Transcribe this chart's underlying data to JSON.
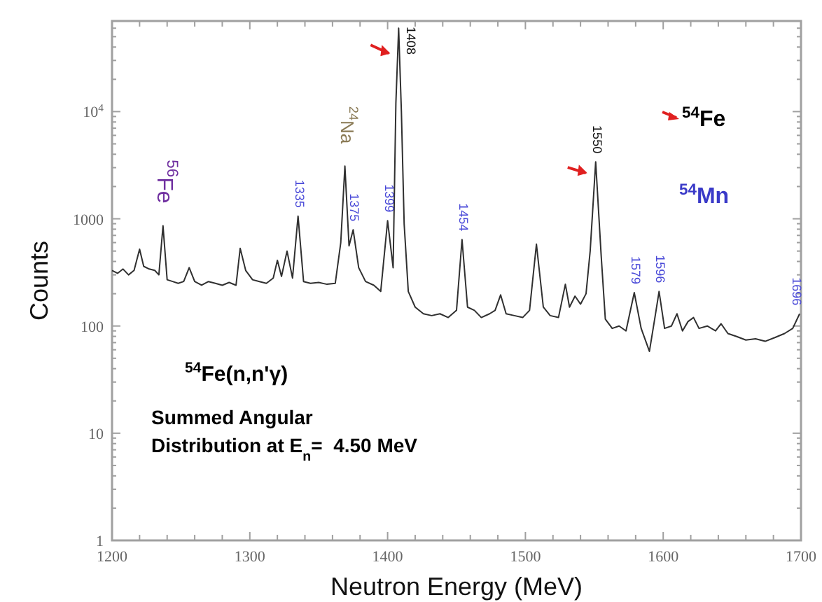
{
  "chart_data": {
    "type": "line",
    "xlabel": "Neutron Energy (MeV)",
    "ylabel": "Counts",
    "log": "y",
    "grid": false,
    "marker": "none",
    "line_style": "solid",
    "xlim": [
      1200,
      1700
    ],
    "ylim": [
      1,
      70000
    ],
    "xticks": [
      1200,
      {
        "value": 1220,
        "label": null
      },
      {
        "value": 1240,
        "label": null
      },
      {
        "value": 1260,
        "label": null
      },
      {
        "value": 1280,
        "label": null
      },
      1300,
      {
        "value": 1320,
        "label": null
      },
      {
        "value": 1340,
        "label": null
      },
      {
        "value": 1360,
        "label": null
      },
      {
        "value": 1380,
        "label": null
      },
      1400,
      {
        "value": 1420,
        "label": null
      },
      {
        "value": 1440,
        "label": null
      },
      {
        "value": 1460,
        "label": null
      },
      {
        "value": 1480,
        "label": null
      },
      1500,
      {
        "value": 1520,
        "label": null
      },
      {
        "value": 1540,
        "label": null
      },
      {
        "value": 1560,
        "label": null
      },
      {
        "value": 1580,
        "label": null
      },
      1600,
      {
        "value": 1620,
        "label": null
      },
      {
        "value": 1640,
        "label": null
      },
      {
        "value": 1660,
        "label": null
      },
      {
        "value": 1680,
        "label": null
      },
      1700
    ],
    "yticks": [
      1,
      {
        "value": 2,
        "label": null
      },
      {
        "value": 3,
        "label": null
      },
      {
        "value": 4,
        "label": null
      },
      {
        "value": 5,
        "label": null
      },
      {
        "value": 6,
        "label": null
      },
      {
        "value": 7,
        "label": null
      },
      {
        "value": 8,
        "label": null
      },
      {
        "value": 9,
        "label": null
      },
      10,
      {
        "value": 20,
        "label": null
      },
      {
        "value": 30,
        "label": null
      },
      {
        "value": 40,
        "label": null
      },
      {
        "value": 50,
        "label": null
      },
      {
        "value": 60,
        "label": null
      },
      {
        "value": 70,
        "label": null
      },
      {
        "value": 80,
        "label": null
      },
      {
        "value": 90,
        "label": null
      },
      100,
      {
        "value": 200,
        "label": null
      },
      {
        "value": 300,
        "label": null
      },
      {
        "value": 400,
        "label": null
      },
      {
        "value": 500,
        "label": null
      },
      {
        "value": 600,
        "label": null
      },
      {
        "value": 700,
        "label": null
      },
      {
        "value": 800,
        "label": null
      },
      {
        "value": 900,
        "label": null
      },
      1000,
      {
        "value": 2000,
        "label": null
      },
      {
        "value": 3000,
        "label": null
      },
      {
        "value": 4000,
        "label": null
      },
      {
        "value": 5000,
        "label": null
      },
      {
        "value": 6000,
        "label": null
      },
      {
        "value": 7000,
        "label": null
      },
      {
        "value": 8000,
        "label": null
      },
      {
        "value": 9000,
        "label": null
      },
      {
        "value": 10000,
        "label": "10$^{4}$"
      },
      {
        "value": 20000,
        "label": null
      },
      {
        "value": 30000,
        "label": null
      },
      {
        "value": 40000,
        "label": null
      },
      {
        "value": 50000,
        "label": null
      },
      {
        "value": 60000,
        "label": null
      }
    ],
    "series": [
      {
        "color": "#303030",
        "x": [
          1200,
          1204,
          1208,
          1212,
          1216,
          1220,
          1223,
          1227,
          1231,
          1234,
          1237,
          1240,
          1244,
          1248,
          1252,
          1256,
          1260,
          1265,
          1270,
          1275,
          1280,
          1285,
          1290,
          1293,
          1297,
          1302,
          1307,
          1312,
          1317,
          1320,
          1323,
          1327,
          1331,
          1335,
          1339,
          1344,
          1350,
          1356,
          1362,
          1366,
          1369,
          1372,
          1375,
          1379,
          1384,
          1390,
          1395,
          1400,
          1404,
          1406,
          1408,
          1410,
          1412,
          1415,
          1420,
          1426,
          1432,
          1438,
          1444,
          1450,
          1454,
          1458,
          1463,
          1468,
          1474,
          1478,
          1482,
          1486,
          1492,
          1498,
          1503,
          1508,
          1513,
          1518,
          1524,
          1529,
          1532,
          1536,
          1540,
          1544,
          1547,
          1551,
          1555,
          1558,
          1563,
          1568,
          1573,
          1579,
          1584,
          1590,
          1594,
          1597,
          1601,
          1606,
          1610,
          1614,
          1618,
          1622,
          1626,
          1632,
          1638,
          1642,
          1647,
          1653,
          1660,
          1667,
          1674,
          1681,
          1688,
          1694,
          1699
        ],
        "values": [
          330,
          310,
          340,
          300,
          330,
          520,
          360,
          340,
          330,
          300,
          860,
          270,
          260,
          250,
          260,
          350,
          260,
          240,
          260,
          250,
          240,
          255,
          240,
          530,
          330,
          270,
          260,
          250,
          280,
          410,
          290,
          500,
          280,
          1060,
          260,
          250,
          255,
          245,
          250,
          600,
          3100,
          560,
          790,
          350,
          260,
          240,
          210,
          960,
          350,
          12000,
          60000,
          10000,
          900,
          210,
          150,
          130,
          125,
          130,
          120,
          140,
          640,
          150,
          140,
          120,
          130,
          140,
          195,
          130,
          125,
          120,
          140,
          580,
          150,
          125,
          120,
          245,
          150,
          190,
          160,
          200,
          500,
          3400,
          450,
          116,
          95,
          100,
          90,
          205,
          95,
          58,
          120,
          210,
          95,
          100,
          130,
          90,
          110,
          120,
          95,
          100,
          90,
          105,
          85,
          80,
          74,
          76,
          72,
          78,
          85,
          95,
          130
        ]
      }
    ],
    "annotations": [
      {
        "text": "$^{56}$Fe",
        "x": 1237,
        "y": 860
      },
      {
        "text": "1335",
        "x": 1335,
        "y": 1060
      },
      {
        "text": "$^{24}$Na",
        "x": 1369,
        "y": 3100
      },
      {
        "text": "1375",
        "x": 1375,
        "y": 790
      },
      {
        "text": "1399",
        "x": 1400,
        "y": 960
      },
      {
        "text": "1408",
        "x": 1408,
        "y": 60000
      },
      {
        "text": "1454",
        "x": 1454,
        "y": 640
      },
      {
        "text": "1550",
        "x": 1551,
        "y": 3400
      },
      {
        "text": "1579",
        "x": 1579,
        "y": 205
      },
      {
        "text": "1596",
        "x": 1597,
        "y": 210
      },
      {
        "text": "1696",
        "x": 1699,
        "y": 130
      },
      "$^{54}$Fe",
      "$^{54}$Mn",
      "$^{54}$Fe(n,n'γ)",
      "Summed Angular Distribution at E$_{n}$=  4.50 MeV"
    ]
  }
}
